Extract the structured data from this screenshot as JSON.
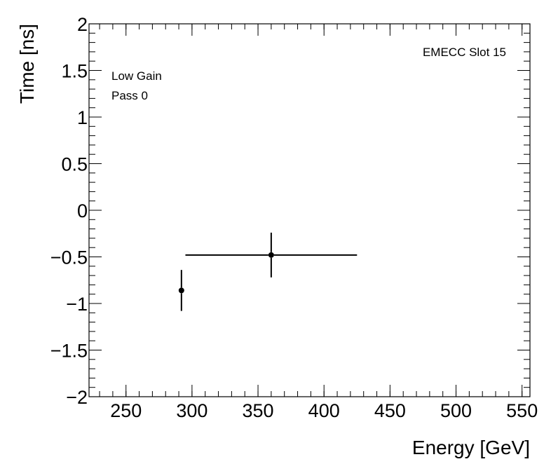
{
  "chart_data": {
    "type": "scatter",
    "xlabel": "Energy [GeV]",
    "ylabel": "Time [ns]",
    "xlim": [
      222,
      556
    ],
    "ylim": [
      -2,
      2
    ],
    "x_ticks": [
      {
        "value": 250,
        "label": "250"
      },
      {
        "value": 300,
        "label": "300"
      },
      {
        "value": 350,
        "label": "350"
      },
      {
        "value": 400,
        "label": "400"
      },
      {
        "value": 450,
        "label": "450"
      },
      {
        "value": 500,
        "label": "500"
      },
      {
        "value": 550,
        "label": "550"
      }
    ],
    "y_ticks": [
      {
        "value": 2,
        "label": "2"
      },
      {
        "value": 1.5,
        "label": "1.5"
      },
      {
        "value": 1,
        "label": "1"
      },
      {
        "value": 0.5,
        "label": "0.5"
      },
      {
        "value": 0,
        "label": "0"
      },
      {
        "value": -0.5,
        "label": "−0.5"
      },
      {
        "value": -1,
        "label": "−1"
      },
      {
        "value": -1.5,
        "label": "−1.5"
      },
      {
        "value": -2,
        "label": "−2"
      }
    ],
    "x_minor_step": 10,
    "y_minor_step": 0.1,
    "points": [
      {
        "x": 292,
        "y": -0.86,
        "xerr_low": 0,
        "xerr_high": 0,
        "yerr": 0.22
      },
      {
        "x": 360,
        "y": -0.48,
        "xerr_low": 65,
        "xerr_high": 65,
        "yerr": 0.24
      }
    ],
    "annotations": {
      "top_right": "EMECC Slot 15",
      "top_left": [
        "Low Gain",
        "Pass 0"
      ]
    },
    "grid": false,
    "marker_color": "#000000"
  }
}
